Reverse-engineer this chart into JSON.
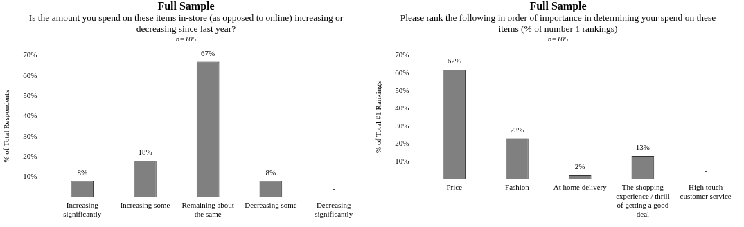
{
  "chart_data": [
    {
      "type": "bar",
      "title": "Full Sample",
      "subtitle": "Is the amount you spend on these items in-store (as opposed to online) increasing or decreasing since last year?",
      "annotations": [
        "n=105"
      ],
      "ylabel": "% of Total Respondents",
      "categories": [
        "Increasing significantly",
        "Increasing some",
        "Remaining about the same",
        "Decreasing some",
        "Decreasing significantly"
      ],
      "values": [
        8,
        18,
        67,
        8,
        0
      ],
      "value_labels": [
        "8%",
        "18%",
        "67%",
        "8%",
        "-"
      ],
      "color": "#808080",
      "ylim": [
        0,
        70
      ],
      "yticks": [
        {
          "value": 0,
          "label": "-"
        },
        {
          "value": 10,
          "label": "10%"
        },
        {
          "value": 20,
          "label": "20%"
        },
        {
          "value": 30,
          "label": "30%"
        },
        {
          "value": 40,
          "label": "40%"
        },
        {
          "value": 50,
          "label": "50%"
        },
        {
          "value": 60,
          "label": "60%"
        },
        {
          "value": 70,
          "label": "70%"
        }
      ],
      "grid": false,
      "legend": false
    },
    {
      "type": "bar",
      "title": "Full Sample",
      "subtitle": "Please rank the following in order of importance in determining your spend on these items (% of number 1 rankings)",
      "annotations": [
        "n=105"
      ],
      "ylabel": "% of Total #1 Rankings",
      "categories": [
        "Price",
        "Fashion",
        "At home delivery",
        "The shopping experience / thrill of getting a good deal",
        "High touch customer service"
      ],
      "values": [
        62,
        23,
        2,
        13,
        0
      ],
      "value_labels": [
        "62%",
        "23%",
        "2%",
        "13%",
        "-"
      ],
      "color": "#808080",
      "ylim": [
        0,
        70
      ],
      "yticks": [
        {
          "value": 0,
          "label": "-"
        },
        {
          "value": 10,
          "label": "10%"
        },
        {
          "value": 20,
          "label": "20%"
        },
        {
          "value": 30,
          "label": "30%"
        },
        {
          "value": 40,
          "label": "40%"
        },
        {
          "value": 50,
          "label": "50%"
        },
        {
          "value": 60,
          "label": "60%"
        },
        {
          "value": 70,
          "label": "70%"
        }
      ],
      "grid": false,
      "legend": false
    }
  ]
}
